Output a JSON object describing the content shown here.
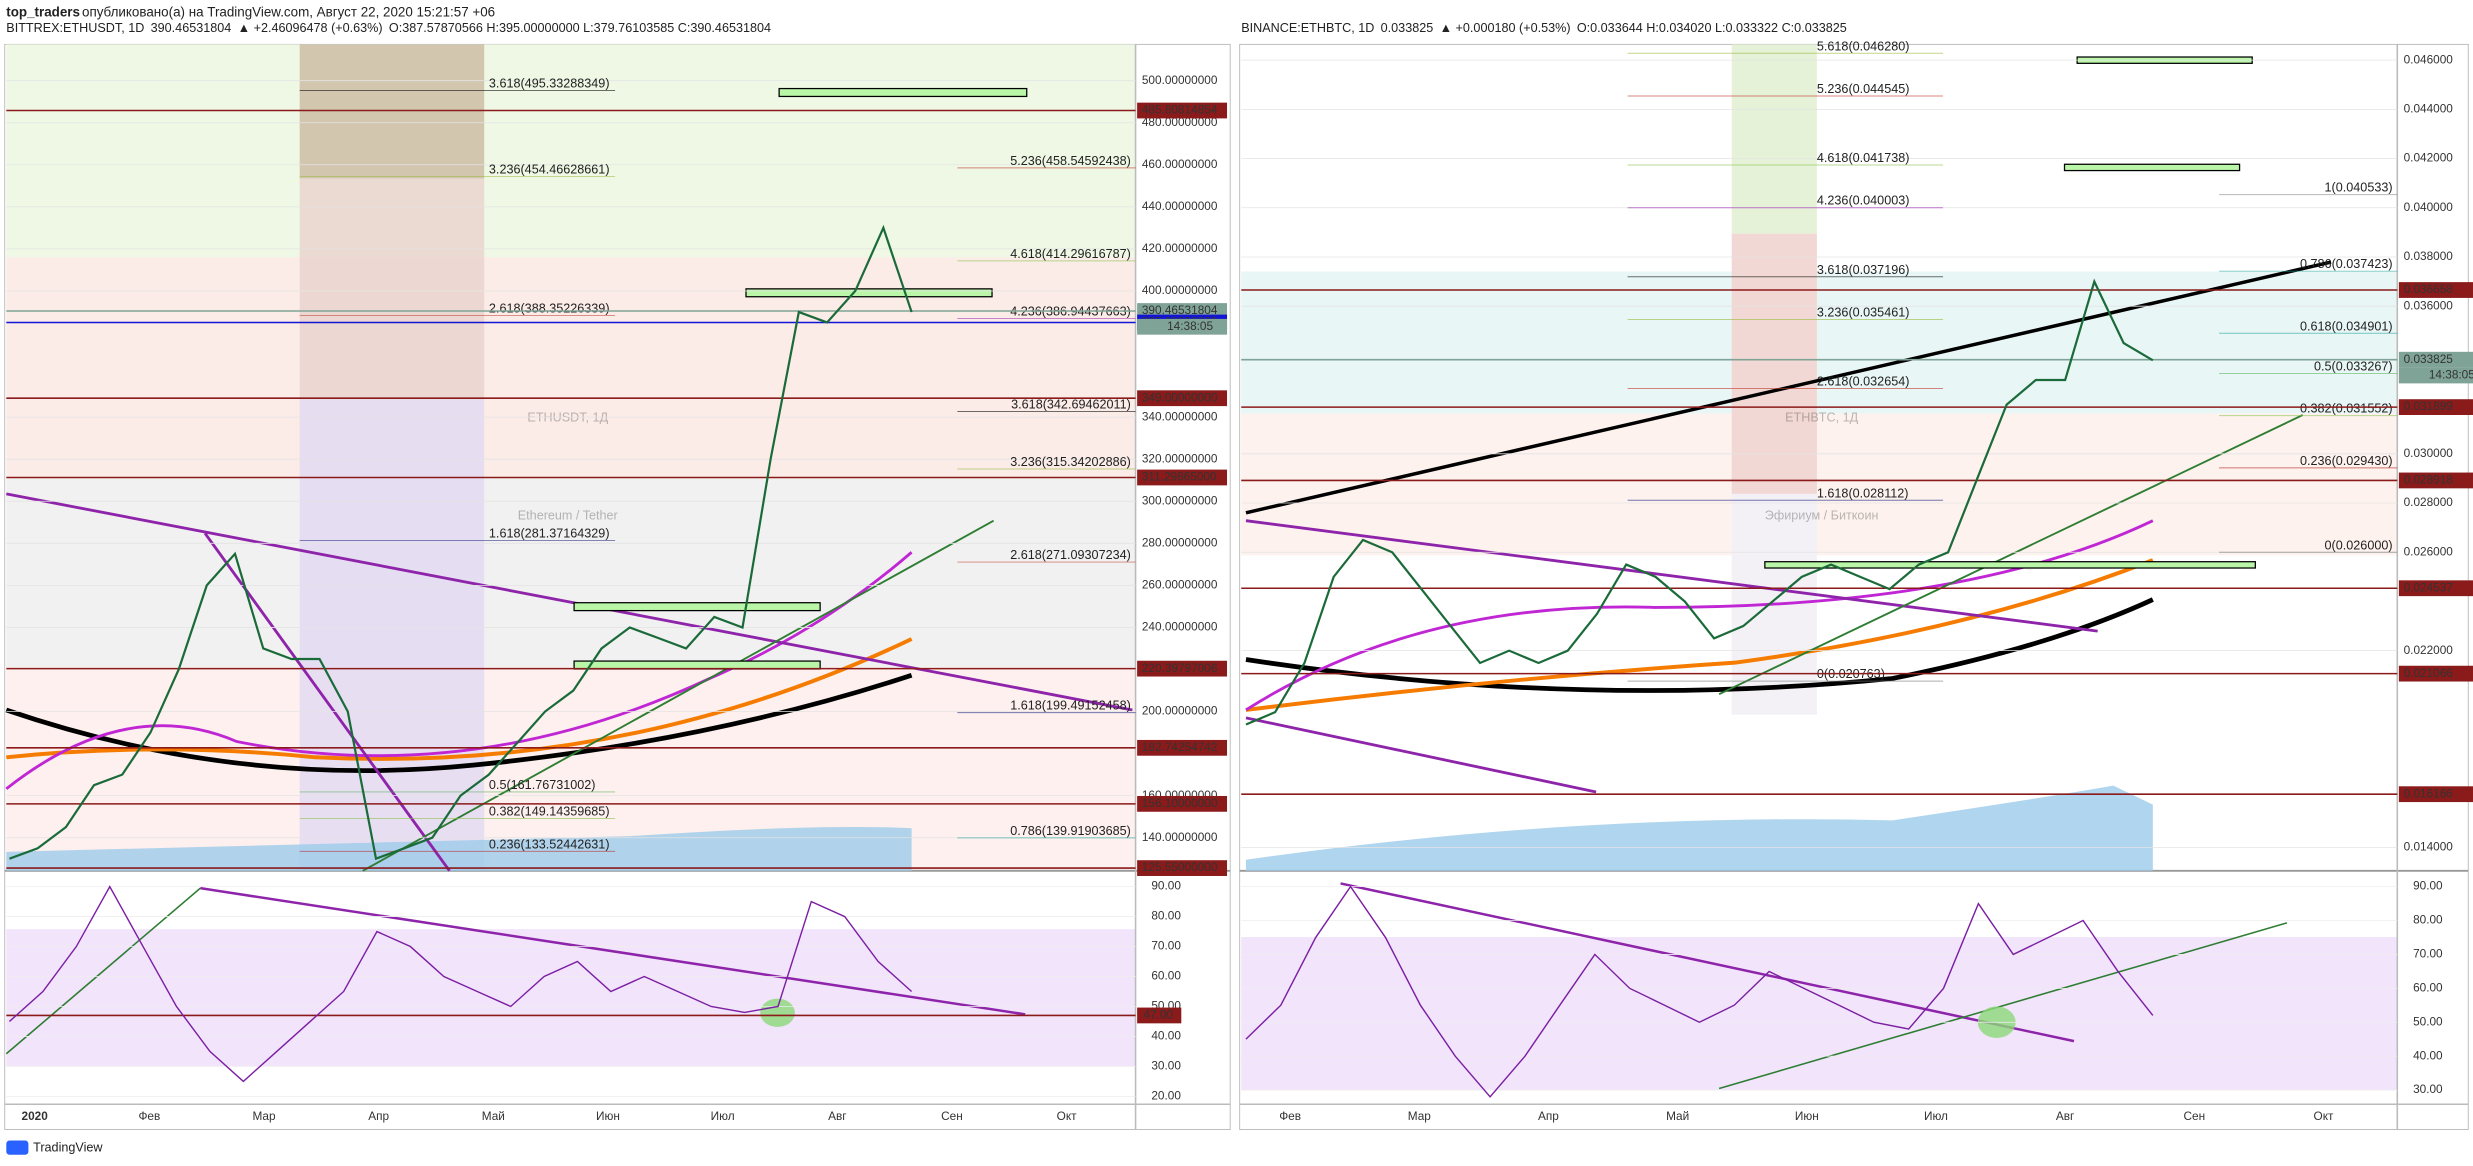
{
  "header": {
    "author": "top_traders",
    "published": "опубликовано(а) на TradingView.com, Август 22, 2020 15:21:57 +06"
  },
  "footer": {
    "brand": "TradingView"
  },
  "panels": [
    {
      "symbol": "BITTREX:ETHUSDT, 1D",
      "last": "390.46531804",
      "change": "▲ +2.46096478 (+0.63%)",
      "ohlc": "O:387.57870566 H:395.00000000 L:379.76103585 C:390.46531804",
      "watermark": "ETHUSDT, 1Д",
      "subtitle": "Ethereum / Tether",
      "countdown": "14:38:05",
      "ylim": [
        124.25,
        517.25
      ],
      "yticks": [
        {
          "value": 500,
          "label": "500.00000000"
        },
        {
          "value": 480,
          "label": "480.00000000"
        },
        {
          "value": 460,
          "label": "460.00000000"
        },
        {
          "value": 440,
          "label": "440.00000000"
        },
        {
          "value": 420,
          "label": "420.00000000"
        },
        {
          "value": 400,
          "label": "400.00000000"
        },
        {
          "value": 340,
          "label": "340.00000000"
        },
        {
          "value": 320,
          "label": "320.00000000"
        },
        {
          "value": 300,
          "label": "300.00000000"
        },
        {
          "value": 280,
          "label": "280.00000000"
        },
        {
          "value": 260,
          "label": "260.00000000"
        },
        {
          "value": 240,
          "label": "240.00000000"
        },
        {
          "value": 200,
          "label": "200.00000000"
        },
        {
          "value": 160,
          "label": "160.00000000"
        },
        {
          "value": 140,
          "label": "140.00000000"
        }
      ],
      "price_labels": [
        {
          "value": 485.80814854,
          "label": "485.80814854",
          "color": "#8b1a1a"
        },
        {
          "value": 390.46531804,
          "label": "390.46531804",
          "color": "#7fa396"
        },
        {
          "value": 385,
          "label": "385.00000000",
          "color": "#1414d4"
        },
        {
          "value": 349,
          "label": "349.00000000",
          "color": "#8b1a1a"
        },
        {
          "value": 311.29865,
          "label": "311.29865000",
          "color": "#8b1a1a"
        },
        {
          "value": 220.39797006,
          "label": "220.39797006",
          "color": "#8b1a1a"
        },
        {
          "value": 182.74254742,
          "label": "182.74254742",
          "color": "#8b1a1a"
        },
        {
          "value": 156.1,
          "label": "156.10000000",
          "color": "#8b1a1a"
        },
        {
          "value": 125.55,
          "label": "125.55000000",
          "color": "#8b1a1a"
        }
      ],
      "fibs_mid": [
        {
          "value": 495.33288349,
          "label": "3.618(495.33288349)",
          "color": "#111111"
        },
        {
          "value": 454.46628661,
          "label": "3.236(454.46628661)",
          "color": "#9aba3a"
        },
        {
          "value": 388.35226339,
          "label": "2.618(388.35226339)",
          "color": "#c0392b"
        },
        {
          "value": 281.37164329,
          "label": "1.618(281.37164329)",
          "color": "#1a237e"
        },
        {
          "value": 161.76731002,
          "label": "0.5(161.76731002)",
          "color": "#4caf50"
        },
        {
          "value": 149.14359685,
          "label": "0.382(149.14359685)",
          "color": "#8bc34a"
        },
        {
          "value": 133.52442631,
          "label": "0.236(133.52442631)",
          "color": "#b71c1c"
        }
      ],
      "fibs_right": [
        {
          "value": 458.54592438,
          "label": "5.236(458.54592438)",
          "color": "#c0392b"
        },
        {
          "value": 414.29616787,
          "label": "4.618(414.29616787)",
          "color": "#8bc34a"
        },
        {
          "value": 386.94437663,
          "label": "4.236(386.94437663)",
          "color": "#9c27b0"
        },
        {
          "value": 342.69462011,
          "label": "3.618(342.69462011)",
          "color": "#111111"
        },
        {
          "value": 315.34202886,
          "label": "3.236(315.34202886)",
          "color": "#9aba3a"
        },
        {
          "value": 271.09307234,
          "label": "2.618(271.09307234)",
          "color": "#c0392b"
        },
        {
          "value": 199.49152458,
          "label": "1.618(199.49152458)",
          "color": "#1a237e"
        },
        {
          "value": 139.91903685,
          "label": "0.786(139.91903685)",
          "color": "#26a69a"
        }
      ],
      "closes": [
        130,
        135,
        145,
        165,
        170,
        190,
        220,
        260,
        275,
        230,
        225,
        225,
        200,
        130,
        135,
        140,
        160,
        170,
        185,
        200,
        210,
        230,
        240,
        235,
        230,
        245,
        240,
        320,
        390,
        385,
        400,
        430,
        390
      ],
      "rsi_ylim": [
        17.37,
        93.68
      ],
      "rsi_ticks": [
        {
          "value": 90,
          "label": "90.00"
        },
        {
          "value": 80,
          "label": "80.00"
        },
        {
          "value": 70,
          "label": "70.00"
        },
        {
          "value": 60,
          "label": "60.00"
        },
        {
          "value": 50,
          "label": "50.00"
        },
        {
          "value": 40,
          "label": "40.00"
        },
        {
          "value": 30,
          "label": "30.00"
        },
        {
          "value": 20,
          "label": "20.00"
        }
      ],
      "rsi_level": {
        "value": 47,
        "label": "47.00"
      },
      "rsi_values": [
        45,
        55,
        70,
        90,
        70,
        50,
        35,
        25,
        35,
        45,
        55,
        75,
        70,
        60,
        55,
        50,
        60,
        65,
        55,
        60,
        55,
        50,
        48,
        50,
        85,
        80,
        65,
        55
      ],
      "months": [
        "2020",
        "Фев",
        "Мар",
        "Апр",
        "Май",
        "Июн",
        "Июл",
        "Авг",
        "Сен",
        "Окт"
      ]
    },
    {
      "symbol": "BINANCE:ETHBTC, 1D",
      "last": "0.033825",
      "change": "▲ +0.000180 (+0.53%)",
      "ohlc": "O:0.033644 H:0.034020 L:0.033322 C:0.033825",
      "watermark": "ETHBTC, 1Д",
      "subtitle": "Эфириум / Биткоин",
      "countdown": "14:38:05",
      "ylim": [
        0.013051,
        0.046641
      ],
      "yticks": [
        {
          "value": 0.046,
          "label": "0.046000"
        },
        {
          "value": 0.044,
          "label": "0.044000"
        },
        {
          "value": 0.042,
          "label": "0.042000"
        },
        {
          "value": 0.04,
          "label": "0.040000"
        },
        {
          "value": 0.038,
          "label": "0.038000"
        },
        {
          "value": 0.036,
          "label": "0.036000"
        },
        {
          "value": 0.03,
          "label": "0.030000"
        },
        {
          "value": 0.028,
          "label": "0.028000"
        },
        {
          "value": 0.026,
          "label": "0.026000"
        },
        {
          "value": 0.022,
          "label": "0.022000"
        },
        {
          "value": 0.014,
          "label": "0.014000"
        }
      ],
      "price_labels": [
        {
          "value": 0.036658,
          "label": "0.036658",
          "color": "#8b1a1a"
        },
        {
          "value": 0.033825,
          "label": "0.033825",
          "color": "#7fa396"
        },
        {
          "value": 0.031899,
          "label": "0.031899",
          "color": "#8b1a1a"
        },
        {
          "value": 0.028918,
          "label": "0.028918",
          "color": "#8b1a1a"
        },
        {
          "value": 0.024537,
          "label": "0.024537",
          "color": "#8b1a1a"
        },
        {
          "value": 0.021066,
          "label": "0.021066",
          "color": "#8b1a1a"
        },
        {
          "value": 0.016166,
          "label": "0.016166",
          "color": "#8b1a1a"
        }
      ],
      "fibs_mid": [
        {
          "value": 0.04628,
          "label": "5.618(0.046280)",
          "color": "#9aba3a"
        },
        {
          "value": 0.044545,
          "label": "5.236(0.044545)",
          "color": "#c0392b"
        },
        {
          "value": 0.041738,
          "label": "4.618(0.041738)",
          "color": "#8bc34a"
        },
        {
          "value": 0.040003,
          "label": "4.236(0.040003)",
          "color": "#9c27b0"
        },
        {
          "value": 0.037196,
          "label": "3.618(0.037196)",
          "color": "#111111"
        },
        {
          "value": 0.035461,
          "label": "3.236(0.035461)",
          "color": "#9aba3a"
        },
        {
          "value": 0.032654,
          "label": "2.618(0.032654)",
          "color": "#c0392b"
        },
        {
          "value": 0.028112,
          "label": "1.618(0.028112)",
          "color": "#1a237e"
        },
        {
          "value": 0.020763,
          "label": "0(0.020763)",
          "color": "#777777"
        }
      ],
      "fibs_right": [
        {
          "value": 0.040533,
          "label": "1(0.040533)",
          "color": "#777777"
        },
        {
          "value": 0.037423,
          "label": "0.786(0.037423)",
          "color": "#26a69a"
        },
        {
          "value": 0.034901,
          "label": "0.618(0.034901)",
          "color": "#26a69a"
        },
        {
          "value": 0.033267,
          "label": "0.5(0.033267)",
          "color": "#4caf50"
        },
        {
          "value": 0.031552,
          "label": "0.382(0.031552)",
          "color": "#8bc34a"
        },
        {
          "value": 0.02943,
          "label": "0.236(0.029430)",
          "color": "#b71c1c"
        },
        {
          "value": 0.026,
          "label": "0(0.026000)",
          "color": "#777777"
        }
      ],
      "closes": [
        0.019,
        0.0195,
        0.0215,
        0.025,
        0.0265,
        0.026,
        0.0245,
        0.023,
        0.0215,
        0.022,
        0.0215,
        0.022,
        0.0235,
        0.0255,
        0.025,
        0.024,
        0.0225,
        0.023,
        0.024,
        0.025,
        0.0255,
        0.025,
        0.0245,
        0.0255,
        0.026,
        0.029,
        0.032,
        0.033,
        0.033,
        0.037,
        0.0345,
        0.0338
      ],
      "rsi_ylim": [
        25.81,
        93.26
      ],
      "rsi_ticks": [
        {
          "value": 90,
          "label": "90.00"
        },
        {
          "value": 80,
          "label": "80.00"
        },
        {
          "value": 70,
          "label": "70.00"
        },
        {
          "value": 60,
          "label": "60.00"
        },
        {
          "value": 50,
          "label": "50.00"
        },
        {
          "value": 40,
          "label": "40.00"
        },
        {
          "value": 30,
          "label": "30.00"
        }
      ],
      "rsi_values": [
        45,
        55,
        75,
        90,
        75,
        55,
        40,
        28,
        40,
        55,
        70,
        60,
        55,
        50,
        55,
        65,
        60,
        55,
        50,
        48,
        60,
        85,
        70,
        75,
        80,
        65,
        52
      ],
      "months": [
        "Фев",
        "Мар",
        "Апр",
        "Май",
        "Июн",
        "Июл",
        "Авг",
        "Сен",
        "Окт"
      ]
    }
  ]
}
